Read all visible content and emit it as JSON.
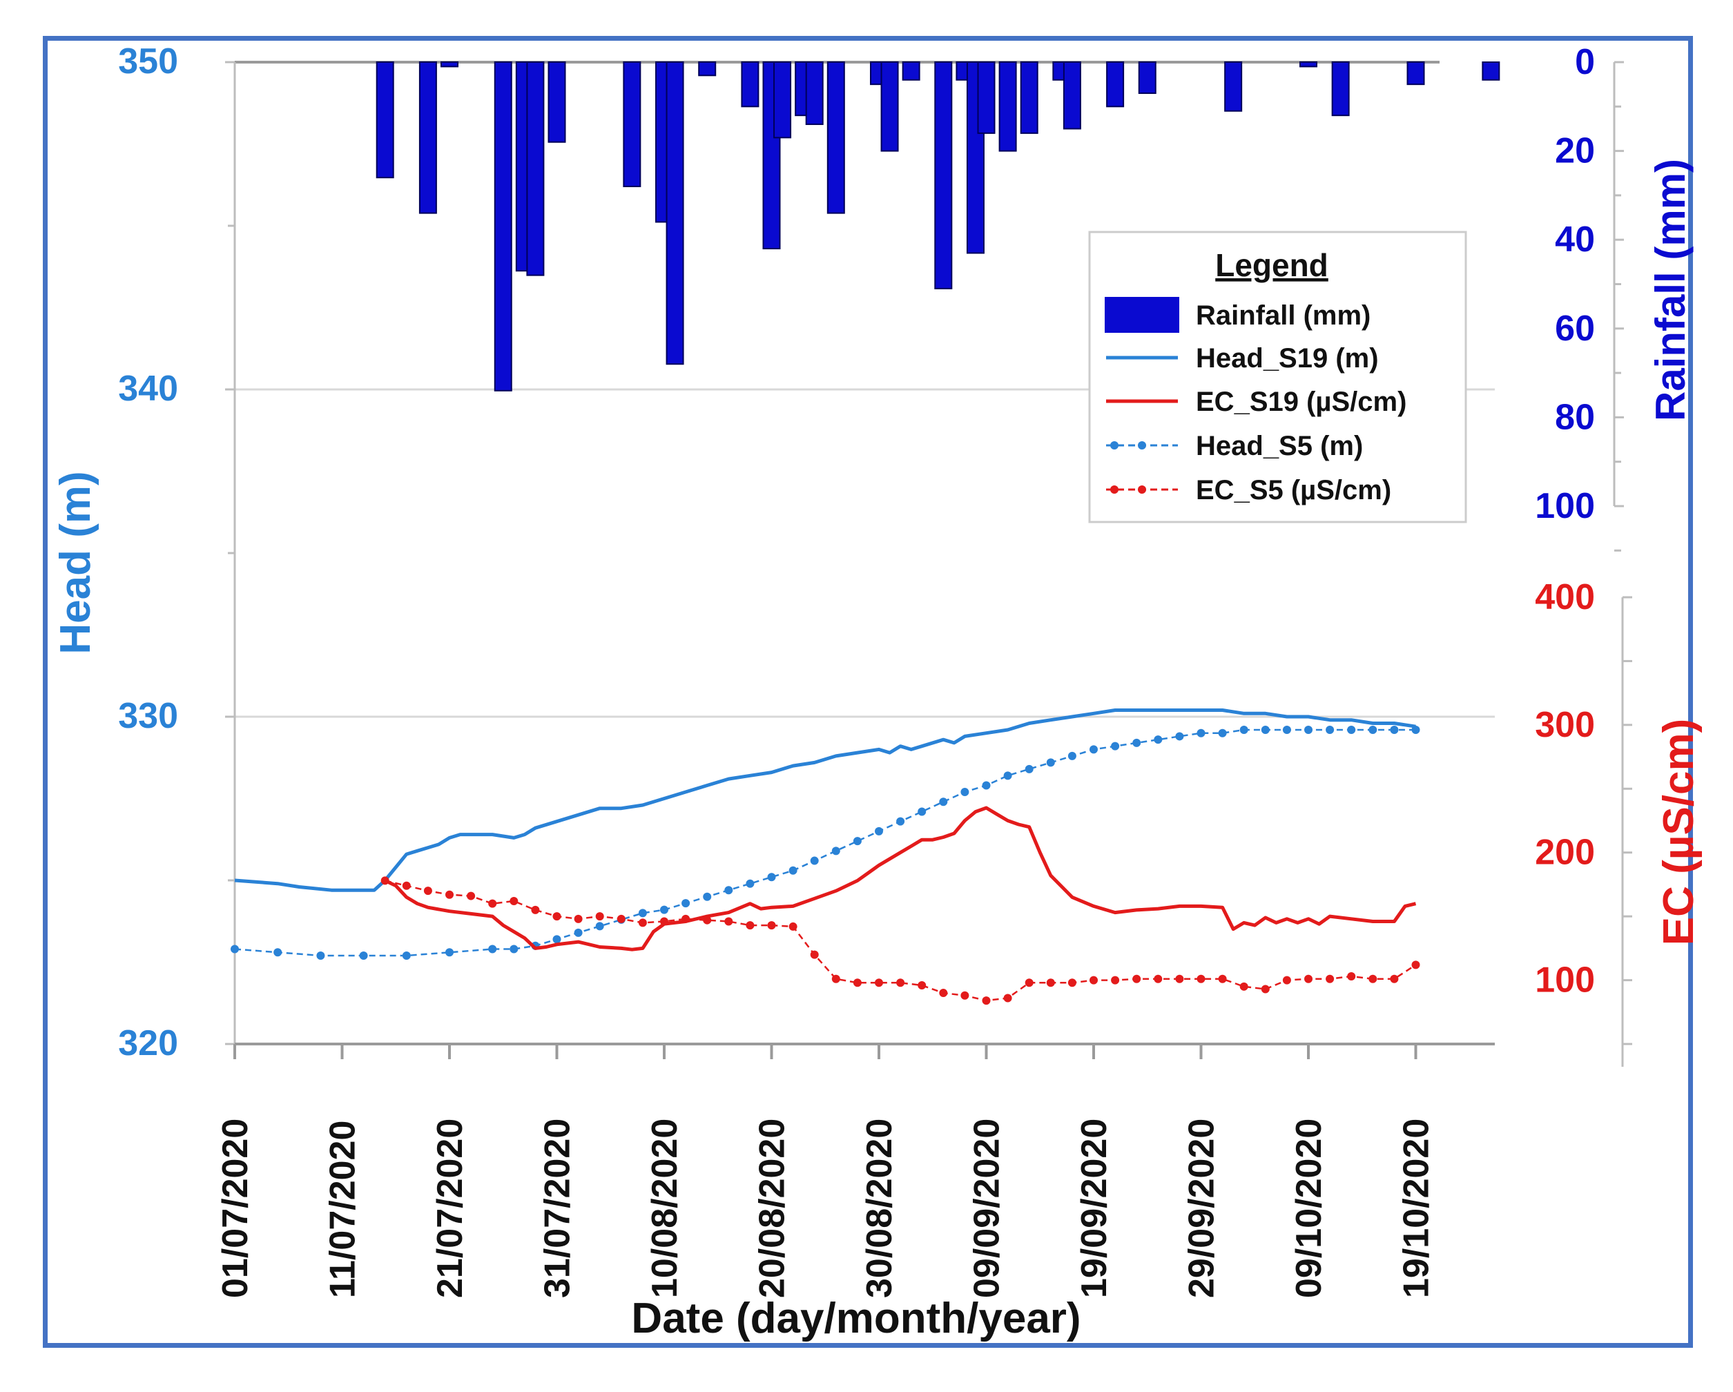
{
  "chart_data": {
    "type": "bar+line",
    "title": "",
    "xlabel": "Date (day/month/year)",
    "x_ticks": [
      "01/07/2020",
      "11/07/2020",
      "21/07/2020",
      "31/07/2020",
      "10/08/2020",
      "20/08/2020",
      "30/08/2020",
      "09/09/2020",
      "19/09/2020",
      "29/09/2020",
      "09/10/2020",
      "19/10/2020"
    ],
    "axes": {
      "head": {
        "label": "Head (m)",
        "range": [
          320,
          350
        ],
        "ticks": [
          320,
          330,
          340,
          350
        ],
        "minor_ticks": [
          325,
          335,
          345
        ],
        "color": "#2a82d6"
      },
      "rainfall": {
        "label": "Rainfall (mm)",
        "range": [
          0,
          100
        ],
        "inverted": true,
        "ticks": [
          0,
          20,
          40,
          60,
          80,
          100
        ],
        "color": "#0a0ad0"
      },
      "ec": {
        "label": "EC (µS/cm)",
        "range": [
          50,
          400
        ],
        "ticks": [
          100,
          200,
          300,
          400
        ],
        "color": "#e31b1b"
      }
    },
    "legend": {
      "title": "Legend",
      "position": "upper-right",
      "entries": [
        {
          "label": "Rainfall (mm)",
          "style": "bar"
        },
        {
          "label": "Head_S19 (m)",
          "style": "line"
        },
        {
          "label": "EC_S19 (µS/cm)",
          "style": "line"
        },
        {
          "label": "Head_S5 (m)",
          "style": "dotted"
        },
        {
          "label": "EC_S5 (µS/cm)",
          "style": "dotted"
        }
      ]
    },
    "series": [
      {
        "name": "Rainfall (mm)",
        "type": "bar",
        "axis": "rainfall",
        "color": "#0a0ad0",
        "x": [
          14,
          18,
          20,
          25,
          27,
          28,
          30,
          37,
          40,
          41,
          44,
          48,
          50,
          51,
          53,
          54,
          56,
          60,
          61,
          63,
          66,
          68,
          69,
          70,
          72,
          74,
          77,
          78,
          82,
          85,
          93,
          100,
          103,
          110,
          117
        ],
        "values": [
          26,
          34,
          1,
          74,
          47,
          48,
          18,
          28,
          36,
          68,
          3,
          10,
          42,
          17,
          12,
          14,
          34,
          5,
          20,
          4,
          51,
          4,
          43,
          16,
          20,
          16,
          4,
          15,
          10,
          7,
          11,
          1,
          12,
          5,
          4
        ]
      },
      {
        "name": "Head_S19 (m)",
        "type": "line",
        "axis": "head",
        "color": "#2a82d6",
        "x": [
          0,
          4,
          6,
          9,
          12,
          13,
          14,
          15,
          16,
          17,
          18,
          19,
          20,
          21,
          22,
          24,
          26,
          27,
          28,
          30,
          32,
          34,
          36,
          38,
          40,
          42,
          44,
          46,
          48,
          50,
          52,
          54,
          56,
          58,
          60,
          61,
          62,
          63,
          64,
          66,
          67,
          68,
          70,
          72,
          74,
          76,
          78,
          80,
          82,
          84,
          86,
          88,
          90,
          92,
          94,
          96,
          98,
          100,
          102,
          104,
          106,
          108,
          110
        ],
        "values": [
          325.0,
          324.9,
          324.8,
          324.7,
          324.7,
          324.7,
          325.0,
          325.4,
          325.8,
          325.9,
          326.0,
          326.1,
          326.3,
          326.4,
          326.4,
          326.4,
          326.3,
          326.4,
          326.6,
          326.8,
          327.0,
          327.2,
          327.2,
          327.3,
          327.5,
          327.7,
          327.9,
          328.1,
          328.2,
          328.3,
          328.5,
          328.6,
          328.8,
          328.9,
          329.0,
          328.9,
          329.1,
          329.0,
          329.1,
          329.3,
          329.2,
          329.4,
          329.5,
          329.6,
          329.8,
          329.9,
          330.0,
          330.1,
          330.2,
          330.2,
          330.2,
          330.2,
          330.2,
          330.2,
          330.1,
          330.1,
          330.0,
          330.0,
          329.9,
          329.9,
          329.8,
          329.8,
          329.7
        ]
      },
      {
        "name": "Head_S5 (m)",
        "type": "dotted",
        "axis": "head",
        "color": "#2a82d6",
        "x": [
          0,
          4,
          8,
          12,
          16,
          20,
          24,
          26,
          28,
          30,
          32,
          34,
          36,
          38,
          40,
          42,
          44,
          46,
          48,
          50,
          52,
          54,
          56,
          58,
          60,
          62,
          64,
          66,
          68,
          70,
          72,
          74,
          76,
          78,
          80,
          82,
          84,
          86,
          88,
          90,
          92,
          94,
          96,
          98,
          100,
          102,
          104,
          106,
          108,
          110
        ],
        "values": [
          322.9,
          322.8,
          322.7,
          322.7,
          322.7,
          322.8,
          322.9,
          322.9,
          323.0,
          323.2,
          323.4,
          323.6,
          323.8,
          324.0,
          324.1,
          324.3,
          324.5,
          324.7,
          324.9,
          325.1,
          325.3,
          325.6,
          325.9,
          326.2,
          326.5,
          326.8,
          327.1,
          327.4,
          327.7,
          327.9,
          328.2,
          328.4,
          328.6,
          328.8,
          329.0,
          329.1,
          329.2,
          329.3,
          329.4,
          329.5,
          329.5,
          329.6,
          329.6,
          329.6,
          329.6,
          329.6,
          329.6,
          329.6,
          329.6,
          329.6
        ]
      },
      {
        "name": "EC_S19 (µS/cm)",
        "type": "line",
        "axis": "ec",
        "color": "#e31b1b",
        "x": [
          14,
          15,
          16,
          17,
          18,
          20,
          22,
          24,
          25,
          26,
          27,
          28,
          29,
          30,
          32,
          34,
          36,
          37,
          38,
          39,
          40,
          42,
          44,
          46,
          48,
          49,
          50,
          52,
          54,
          56,
          58,
          60,
          62,
          63,
          64,
          65,
          66,
          67,
          68,
          69,
          70,
          71,
          72,
          73,
          74,
          75,
          76,
          78,
          80,
          82,
          84,
          86,
          88,
          90,
          92,
          93,
          94,
          95,
          96,
          97,
          98,
          99,
          100,
          101,
          102,
          104,
          106,
          108,
          109,
          110
        ],
        "values": [
          178,
          174,
          165,
          160,
          157,
          154,
          152,
          150,
          143,
          138,
          133,
          125,
          126,
          128,
          130,
          126,
          125,
          124,
          125,
          138,
          144,
          146,
          150,
          153,
          160,
          156,
          157,
          158,
          164,
          170,
          178,
          190,
          200,
          205,
          210,
          210,
          212,
          215,
          225,
          232,
          235,
          230,
          225,
          222,
          220,
          200,
          182,
          165,
          158,
          153,
          155,
          156,
          158,
          158,
          157,
          140,
          145,
          143,
          149,
          145,
          148,
          145,
          148,
          144,
          150,
          148,
          146,
          146,
          158,
          160
        ]
      },
      {
        "name": "EC_S5 (µS/cm)",
        "type": "dotted",
        "axis": "ec",
        "color": "#e31b1b",
        "x": [
          14,
          16,
          18,
          20,
          22,
          24,
          26,
          28,
          30,
          32,
          34,
          36,
          38,
          40,
          42,
          44,
          46,
          48,
          50,
          52,
          54,
          56,
          58,
          60,
          62,
          64,
          66,
          68,
          70,
          72,
          74,
          76,
          78,
          80,
          82,
          84,
          86,
          88,
          90,
          92,
          94,
          96,
          98,
          100,
          102,
          104,
          106,
          108,
          110
        ],
        "values": [
          178,
          174,
          170,
          167,
          166,
          160,
          162,
          155,
          150,
          148,
          150,
          148,
          145,
          146,
          148,
          147,
          146,
          143,
          143,
          142,
          120,
          101,
          98,
          98,
          98,
          96,
          90,
          88,
          84,
          86,
          98,
          98,
          98,
          100,
          100,
          101,
          101,
          101,
          101,
          101,
          95,
          93,
          100,
          101,
          101,
          103,
          101,
          101,
          112
        ]
      }
    ]
  }
}
